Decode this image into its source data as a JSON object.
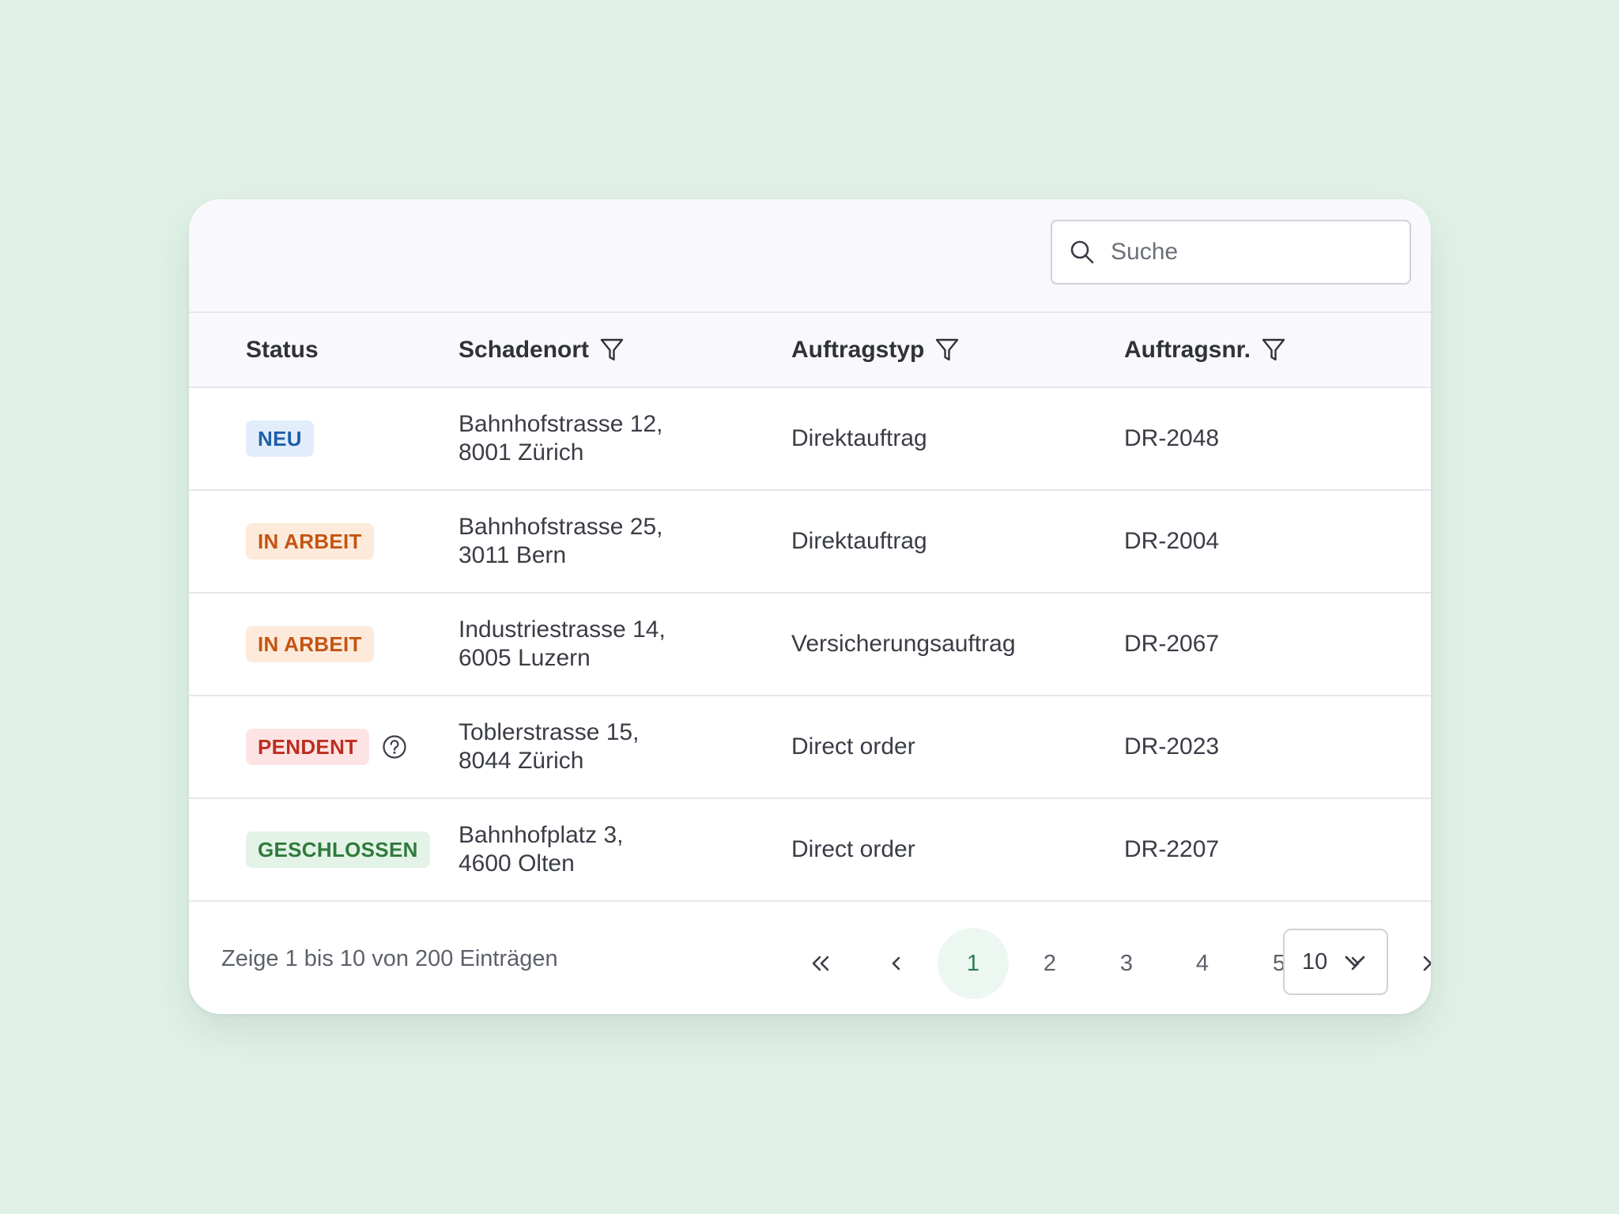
{
  "search": {
    "placeholder": "Suche"
  },
  "columns": {
    "status": "Status",
    "schadenort": "Schadenort",
    "auftragstyp": "Auftragstyp",
    "auftragsnr": "Auftragsnr."
  },
  "rows": [
    {
      "status": "NEU",
      "ort_line1": "Bahnhofstrasse 12,",
      "ort_line2": "8001 Zürich",
      "typ": "Direktauftrag",
      "nr": "DR-2048"
    },
    {
      "status": "IN ARBEIT",
      "ort_line1": "Bahnhofstrasse 25,",
      "ort_line2": "3011 Bern",
      "typ": "Direktauftrag",
      "nr": "DR-2004"
    },
    {
      "status": "IN ARBEIT",
      "ort_line1": "Industriestrasse 14,",
      "ort_line2": "6005 Luzern",
      "typ": "Versicherungsauftrag",
      "nr": "DR-2067"
    },
    {
      "status": "PENDENT",
      "ort_line1": "Toblerstrasse 15,",
      "ort_line2": "8044 Zürich",
      "typ": "Direct order",
      "nr": "DR-2023"
    },
    {
      "status": "GESCHLOSSEN",
      "ort_line1": "Bahnhofplatz 3,",
      "ort_line2": "4600 Olten",
      "typ": "Direct order",
      "nr": "DR-2207"
    }
  ],
  "footer": {
    "info": "Zeige 1 bis 10 von 200 Einträgen",
    "pages": [
      "1",
      "2",
      "3",
      "4",
      "5"
    ],
    "active_page": "1",
    "first": "«",
    "prev": "‹",
    "next": "›",
    "last": "»",
    "per_page": "10"
  },
  "colors": {
    "neu": "#1f5fa8",
    "in_arbeit": "#c45512",
    "pendent": "#bd2d21",
    "geschlossen": "#2f7a3b",
    "active_page": "#2f7a52"
  },
  "icons": {
    "search": "search-icon",
    "filter": "filter-icon",
    "help": "help-circle-icon",
    "chevron_down": "chevron-down-icon"
  }
}
